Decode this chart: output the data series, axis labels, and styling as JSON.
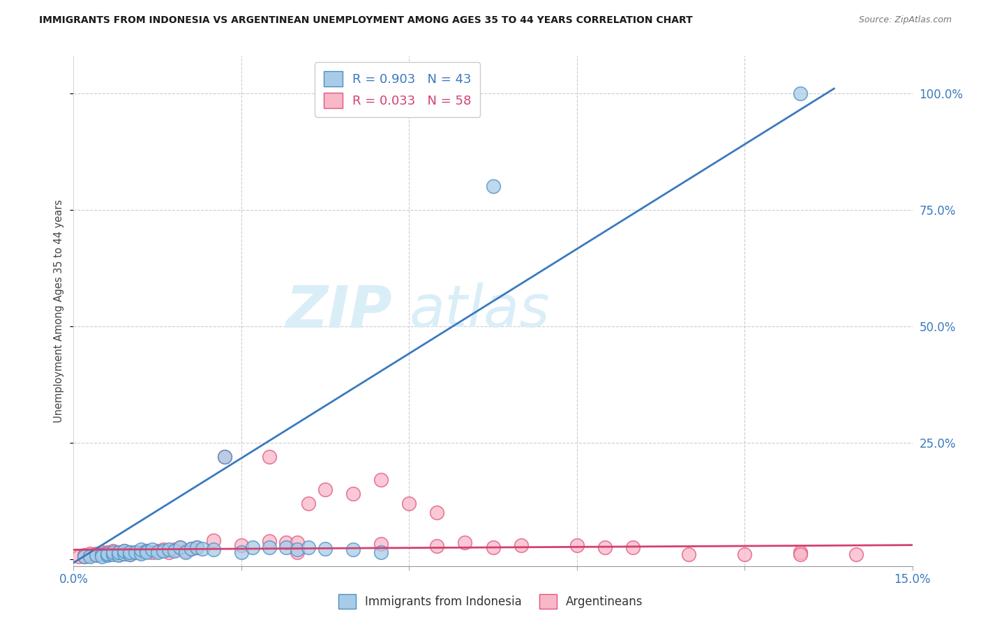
{
  "title": "IMMIGRANTS FROM INDONESIA VS ARGENTINEAN UNEMPLOYMENT AMONG AGES 35 TO 44 YEARS CORRELATION CHART",
  "source": "Source: ZipAtlas.com",
  "ylabel": "Unemployment Among Ages 35 to 44 years",
  "yticks": [
    0.0,
    0.25,
    0.5,
    0.75,
    1.0
  ],
  "ytick_labels": [
    "",
    "25.0%",
    "50.0%",
    "75.0%",
    "100.0%"
  ],
  "xmin": 0.0,
  "xmax": 0.15,
  "ymin": -0.015,
  "ymax": 1.08,
  "legend1_R": "R = 0.903",
  "legend1_N": "N = 43",
  "legend2_R": "R = 0.033",
  "legend2_N": "N = 58",
  "color_blue_face": "#a8cce8",
  "color_pink_face": "#f9b8c8",
  "color_blue_edge": "#4a90c4",
  "color_pink_edge": "#e05580",
  "color_blue_line": "#3a7abf",
  "color_pink_line": "#d44070",
  "color_right_axis": "#4292c6",
  "watermark_color": "#daeef8",
  "blue_scatter_x": [
    0.002,
    0.003,
    0.004,
    0.005,
    0.005,
    0.006,
    0.006,
    0.007,
    0.007,
    0.008,
    0.008,
    0.009,
    0.009,
    0.01,
    0.01,
    0.011,
    0.012,
    0.012,
    0.013,
    0.013,
    0.014,
    0.015,
    0.016,
    0.017,
    0.018,
    0.019,
    0.02,
    0.021,
    0.022,
    0.023,
    0.025,
    0.027,
    0.03,
    0.032,
    0.035,
    0.038,
    0.04,
    0.042,
    0.045,
    0.05,
    0.055,
    0.075,
    0.13
  ],
  "blue_scatter_y": [
    0.005,
    0.005,
    0.008,
    0.01,
    0.005,
    0.008,
    0.012,
    0.01,
    0.015,
    0.008,
    0.015,
    0.012,
    0.018,
    0.01,
    0.015,
    0.015,
    0.012,
    0.02,
    0.018,
    0.015,
    0.02,
    0.015,
    0.018,
    0.02,
    0.018,
    0.025,
    0.015,
    0.022,
    0.025,
    0.022,
    0.02,
    0.22,
    0.015,
    0.025,
    0.025,
    0.025,
    0.02,
    0.025,
    0.022,
    0.02,
    0.015,
    0.8,
    1.0
  ],
  "pink_scatter_x": [
    0.001,
    0.002,
    0.002,
    0.003,
    0.003,
    0.004,
    0.004,
    0.005,
    0.005,
    0.006,
    0.006,
    0.007,
    0.007,
    0.008,
    0.008,
    0.009,
    0.009,
    0.01,
    0.01,
    0.011,
    0.012,
    0.013,
    0.014,
    0.015,
    0.016,
    0.017,
    0.018,
    0.019,
    0.02,
    0.021,
    0.022,
    0.025,
    0.027,
    0.03,
    0.035,
    0.038,
    0.04,
    0.042,
    0.045,
    0.05,
    0.055,
    0.06,
    0.065,
    0.07,
    0.08,
    0.09,
    0.095,
    0.1,
    0.11,
    0.12,
    0.13,
    0.14,
    0.035,
    0.04,
    0.055,
    0.065,
    0.075,
    0.13
  ],
  "pink_scatter_y": [
    0.005,
    0.008,
    0.005,
    0.008,
    0.012,
    0.008,
    0.012,
    0.01,
    0.015,
    0.01,
    0.015,
    0.012,
    0.018,
    0.01,
    0.015,
    0.012,
    0.018,
    0.015,
    0.01,
    0.015,
    0.015,
    0.018,
    0.015,
    0.018,
    0.02,
    0.015,
    0.02,
    0.025,
    0.018,
    0.022,
    0.025,
    0.04,
    0.22,
    0.03,
    0.22,
    0.035,
    0.015,
    0.12,
    0.15,
    0.14,
    0.17,
    0.12,
    0.1,
    0.035,
    0.03,
    0.03,
    0.025,
    0.025,
    0.01,
    0.01,
    0.015,
    0.01,
    0.038,
    0.035,
    0.032,
    0.028,
    0.025,
    0.01
  ],
  "blue_line_x": [
    0.0,
    0.136
  ],
  "blue_line_y": [
    -0.008,
    1.01
  ],
  "pink_line_x": [
    0.0,
    0.15
  ],
  "pink_line_y": [
    0.02,
    0.03
  ]
}
